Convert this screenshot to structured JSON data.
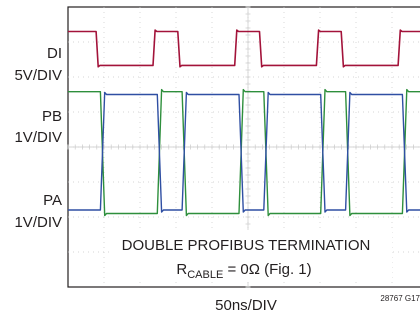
{
  "chart_data": {
    "type": "line",
    "channels": [
      {
        "name": "DI",
        "scale": "5V/DIV",
        "color": "#a3133a"
      },
      {
        "name": "PB",
        "scale": "1V/DIV",
        "color": "#2e8f3c"
      },
      {
        "name": "PA",
        "scale": "1V/DIV",
        "color": "#2f4fa3"
      }
    ],
    "xlabel": "50ns/DIV",
    "grid": true,
    "divisions": {
      "x": 10,
      "y": 8
    },
    "annotation": {
      "line1": "DOUBLE PROFIBUS TERMINATION",
      "line2_prefix": "R",
      "line2_sub": "CABLE",
      "line2_suffix": " = 0Ω (Fig. 1)"
    },
    "figure_id": "28767 G17",
    "x_range_div": [
      0,
      10
    ],
    "di_period_div": 2.27,
    "di_first_fall_div": 0.78,
    "di_first_rise_div": 2.36,
    "bus_delay_div": 0.12,
    "di_levels_div": {
      "high": 7.3,
      "low": 6.33
    },
    "pb_levels_div": {
      "high": 5.58,
      "low": 2.1
    },
    "pa_levels_div": {
      "high": 5.5,
      "low": 2.2
    }
  }
}
